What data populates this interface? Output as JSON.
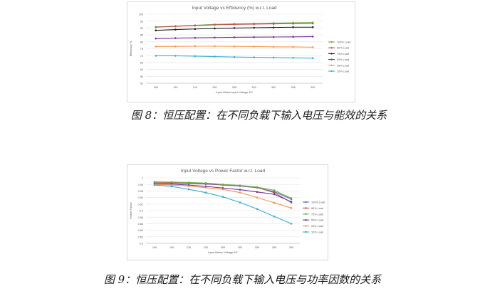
{
  "figures": [
    {
      "caption": {
        "label": "图 8：",
        "prefix": "恒压配置：",
        "text": "在不同负载下输入电压与能效的关系"
      },
      "chart_data": {
        "type": "line",
        "title": "Input Voltage vs Efficiency (%) w.r.t. Load",
        "xlabel": "Input Mains Input Voltage AC",
        "ylabel": "Efficiency %",
        "categories": [
          "180",
          "190",
          "215",
          "230",
          "265",
          "300",
          "330",
          "365",
          "390"
        ],
        "yticks": [
          "50",
          "55",
          "60",
          "65",
          "70",
          "75",
          "80",
          "85",
          "90",
          "95",
          "100"
        ],
        "ylim": [
          50,
          100
        ],
        "grid": true,
        "legend_position": "right",
        "series": [
          {
            "name": "100% Load",
            "color": "#70ad47",
            "values": [
              90.8,
              91.4,
              92.0,
              92.6,
              93.0,
              93.3,
              93.6,
              93.8,
              94.0
            ]
          },
          {
            "name": "80% Load",
            "color": "#c0504d",
            "values": [
              90.6,
              91.2,
              91.8,
              92.3,
              92.6,
              92.8,
              93.0,
              93.2,
              93.3
            ]
          },
          {
            "name": "75% Load",
            "color": "#1f1f1f",
            "values": [
              88.3,
              88.9,
              89.3,
              89.7,
              90.0,
              90.2,
              90.4,
              90.6,
              90.6
            ]
          },
          {
            "name": "50% Load",
            "color": "#7030a0",
            "values": [
              82.4,
              82.7,
              82.9,
              83.1,
              83.3,
              83.4,
              83.5,
              83.6,
              83.8
            ]
          },
          {
            "name": "25% Load",
            "color": "#f79646",
            "values": [
              76.6,
              76.7,
              76.8,
              76.8,
              76.7,
              76.6,
              76.4,
              76.3,
              76.1
            ]
          },
          {
            "name": "10% Load",
            "color": "#31b0d5",
            "values": [
              69.9,
              69.9,
              69.6,
              69.3,
              69.0,
              68.8,
              68.6,
              68.4,
              68.2
            ]
          }
        ]
      }
    },
    {
      "caption": {
        "label": "图 9：",
        "prefix": "恒压配置：",
        "text": "在不同负载下输入电压与功率因数的关系"
      },
      "chart_data": {
        "type": "line",
        "title": "Input Voltage vs Power Factor w.r.t. Load",
        "xlabel": "Input Mains Voltage AC",
        "ylabel": "Power Factor",
        "categories": [
          "180",
          "190",
          "215",
          "230",
          "265",
          "300",
          "330",
          "365",
          "390"
        ],
        "yticks": [
          "0.8",
          "0.82",
          "0.84",
          "0.86",
          "0.88",
          "0.9",
          "0.92",
          "0.94",
          "0.96",
          "0.98",
          "1"
        ],
        "ylim": [
          0.8,
          1.0
        ],
        "grid": true,
        "legend_position": "right",
        "series": [
          {
            "name": "100% Load",
            "color": "#4472c4",
            "values": [
              0.985,
              0.984,
              0.983,
              0.981,
              0.978,
              0.975,
              0.97,
              0.958,
              0.935
            ]
          },
          {
            "name": "80% Load",
            "color": "#c0504d",
            "values": [
              0.985,
              0.985,
              0.984,
              0.982,
              0.979,
              0.976,
              0.971,
              0.955,
              0.925
            ]
          },
          {
            "name": "75% Load",
            "color": "#70ad47",
            "values": [
              0.988,
              0.987,
              0.986,
              0.984,
              0.98,
              0.977,
              0.972,
              0.962,
              0.938
            ]
          },
          {
            "name": "50% Load",
            "color": "#7030a0",
            "values": [
              0.982,
              0.981,
              0.978,
              0.974,
              0.969,
              0.964,
              0.957,
              0.95,
              0.927
            ]
          },
          {
            "name": "25% Load",
            "color": "#f79646",
            "values": [
              0.98,
              0.978,
              0.975,
              0.97,
              0.965,
              0.955,
              0.94,
              0.924,
              0.908
            ]
          },
          {
            "name": "10% Load",
            "color": "#31b0d5",
            "values": [
              0.978,
              0.974,
              0.965,
              0.955,
              0.942,
              0.925,
              0.905,
              0.882,
              0.86
            ]
          }
        ]
      }
    }
  ]
}
